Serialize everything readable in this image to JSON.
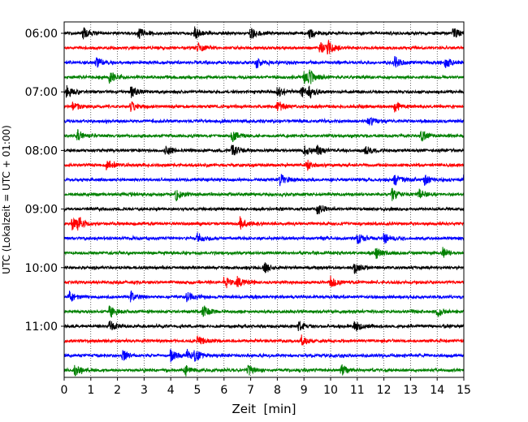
{
  "chart_data": {
    "type": "line",
    "chart_kind": "helicorder seismogram",
    "xlabel": "Zeit  [min]",
    "ylabel": "UTC (Lokalzeit = UTC + 01:00)",
    "x_ticks": [
      0,
      1,
      2,
      3,
      4,
      5,
      6,
      7,
      8,
      9,
      10,
      11,
      12,
      13,
      14,
      15
    ],
    "xlim": [
      0,
      15
    ],
    "y_tick_labels": [
      "06:00",
      "07:00",
      "08:00",
      "09:00",
      "10:00",
      "11:00"
    ],
    "trace_interval_min": 15,
    "traces_per_hour": 4,
    "trace_colors": [
      "#000000",
      "#ff0000",
      "#0000ff",
      "#008000"
    ],
    "grid": "vertical dotted lines at each minute",
    "traces": [
      {
        "start": "06:00",
        "events": [
          0.7,
          2.8,
          4.9,
          7.0,
          9.2,
          14.6
        ]
      },
      {
        "start": "06:15",
        "events": [
          5.0,
          9.6,
          9.9
        ]
      },
      {
        "start": "06:30",
        "events": [
          1.2,
          7.2,
          12.4,
          14.3
        ]
      },
      {
        "start": "06:45",
        "events": [
          1.7,
          9.0,
          9.2
        ]
      },
      {
        "start": "07:00",
        "events": [
          0.1,
          2.5,
          8.0,
          8.9,
          9.2
        ]
      },
      {
        "start": "07:15",
        "events": [
          0.3,
          2.5,
          8.0,
          12.4
        ]
      },
      {
        "start": "07:30",
        "events": [
          11.4
        ]
      },
      {
        "start": "07:45",
        "events": [
          0.5,
          6.3,
          13.4
        ]
      },
      {
        "start": "08:00",
        "events": [
          3.8,
          6.3,
          9.0,
          9.5,
          11.3
        ]
      },
      {
        "start": "08:15",
        "events": [
          1.6,
          9.1
        ]
      },
      {
        "start": "08:30",
        "events": [
          8.1,
          12.4,
          13.5,
          15.0
        ]
      },
      {
        "start": "08:45",
        "events": [
          4.2,
          12.3,
          13.3
        ]
      },
      {
        "start": "09:00",
        "events": [
          9.5
        ]
      },
      {
        "start": "09:15",
        "events": [
          0.3,
          0.5,
          6.6
        ]
      },
      {
        "start": "09:30",
        "events": [
          5.0,
          11.0,
          12.0
        ]
      },
      {
        "start": "09:45",
        "events": [
          11.7,
          14.2
        ]
      },
      {
        "start": "10:00",
        "events": [
          7.5,
          10.9
        ]
      },
      {
        "start": "10:15",
        "events": [
          6.0,
          6.5,
          10.0
        ]
      },
      {
        "start": "10:30",
        "events": [
          0.2,
          2.5,
          4.6
        ]
      },
      {
        "start": "10:45",
        "events": [
          1.7,
          5.2,
          14.0
        ]
      },
      {
        "start": "11:00",
        "events": [
          1.7,
          8.8,
          10.9
        ]
      },
      {
        "start": "11:15",
        "events": [
          5.0,
          8.9
        ]
      },
      {
        "start": "11:30",
        "events": [
          2.2,
          4.0,
          4.6,
          4.9
        ]
      },
      {
        "start": "11:45",
        "events": [
          0.4,
          4.5,
          6.9,
          10.4
        ]
      }
    ]
  }
}
